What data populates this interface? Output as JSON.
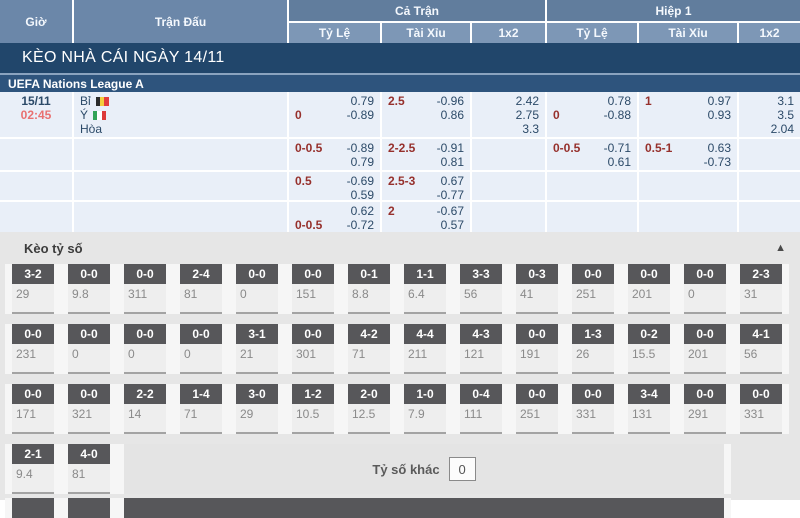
{
  "table_header": {
    "time_col": "Giờ",
    "match_col": "Trận Đấu",
    "full_match": {
      "label": "Cả Trận",
      "subs": [
        "Tỷ Lệ",
        "Tài Xỉu",
        "1x2"
      ]
    },
    "first_half": {
      "label": "Hiệp 1",
      "subs": [
        "Tỷ Lệ",
        "Tài Xỉu",
        "1x2"
      ]
    }
  },
  "banner": {
    "title": "KÈO NHÀ CÁI NGÀY 14/11"
  },
  "league": {
    "name": "UEFA Nations League A"
  },
  "match": {
    "date": "15/11",
    "time": "02:45",
    "teams": [
      {
        "name": "Bỉ",
        "flag": "belgium-flag",
        "flag_colors": [
          "#2b2b2b",
          "#f3ce3c",
          "#e23d3d"
        ]
      },
      {
        "name": "Ý",
        "flag": "italy-flag",
        "flag_colors": [
          "#33a457",
          "#ffffff",
          "#dd3a3a"
        ]
      },
      {
        "name": "Hòa",
        "flag": "",
        "flag_colors": []
      }
    ]
  },
  "odds_rows": [
    {
      "cells": [
        {
          "col": "ft-handicap",
          "lines": [
            [
              "",
              "0.79"
            ],
            [
              "0",
              "-0.89"
            ]
          ]
        },
        {
          "col": "ft-overunder",
          "lines": [
            [
              "2.5",
              "-0.96"
            ],
            [
              "",
              "0.86"
            ]
          ]
        },
        {
          "col": "ft-1x2",
          "lines": [
            [
              "",
              "2.42"
            ],
            [
              "",
              "2.75"
            ],
            [
              "",
              "3.3"
            ]
          ]
        },
        {
          "col": "h1-handicap",
          "lines": [
            [
              "",
              "0.78"
            ],
            [
              "0",
              "-0.88"
            ]
          ]
        },
        {
          "col": "h1-overunder",
          "lines": [
            [
              "1",
              "0.97"
            ],
            [
              "",
              "0.93"
            ]
          ]
        },
        {
          "col": "h1-1x2",
          "lines": [
            [
              "",
              "3.1"
            ],
            [
              "",
              "3.5"
            ],
            [
              "",
              "2.04"
            ]
          ]
        }
      ]
    },
    {
      "cells": [
        {
          "col": "ft-handicap",
          "lines": [
            [
              "0-0.5",
              "-0.89"
            ],
            [
              "",
              "0.79"
            ]
          ]
        },
        {
          "col": "ft-overunder",
          "lines": [
            [
              "2-2.5",
              "-0.91"
            ],
            [
              "",
              "0.81"
            ]
          ]
        },
        {
          "col": "ft-1x2",
          "lines": []
        },
        {
          "col": "h1-handicap",
          "lines": [
            [
              "0-0.5",
              "-0.71"
            ],
            [
              "",
              "0.61"
            ]
          ]
        },
        {
          "col": "h1-overunder",
          "lines": [
            [
              "0.5-1",
              "0.63"
            ],
            [
              "",
              "-0.73"
            ]
          ]
        },
        {
          "col": "h1-1x2",
          "lines": []
        }
      ]
    },
    {
      "cells": [
        {
          "col": "ft-handicap",
          "lines": [
            [
              "0.5",
              "-0.69"
            ],
            [
              "",
              "0.59"
            ]
          ]
        },
        {
          "col": "ft-overunder",
          "lines": [
            [
              "2.5-3",
              "0.67"
            ],
            [
              "",
              "-0.77"
            ]
          ]
        },
        {
          "col": "ft-1x2",
          "lines": []
        },
        {
          "col": "h1-handicap",
          "lines": []
        },
        {
          "col": "h1-overunder",
          "lines": []
        },
        {
          "col": "h1-1x2",
          "lines": []
        }
      ]
    },
    {
      "cells": [
        {
          "col": "ft-handicap",
          "lines": [
            [
              "",
              "0.62"
            ],
            [
              "0-0.5",
              "-0.72"
            ]
          ]
        },
        {
          "col": "ft-overunder",
          "lines": [
            [
              "2",
              "-0.67"
            ],
            [
              "",
              "0.57"
            ]
          ]
        },
        {
          "col": "ft-1x2",
          "lines": []
        },
        {
          "col": "h1-handicap",
          "lines": []
        },
        {
          "col": "h1-overunder",
          "lines": []
        },
        {
          "col": "h1-1x2",
          "lines": []
        }
      ]
    }
  ],
  "score_section": {
    "title": "Kèo tỷ số",
    "collapse_icon": "▲",
    "rows": [
      [
        [
          "3-2",
          "29"
        ],
        [
          "0-0",
          "9.8"
        ],
        [
          "0-0",
          "311"
        ],
        [
          "2-4",
          "81"
        ],
        [
          "0-0",
          "0"
        ],
        [
          "0-0",
          "151"
        ],
        [
          "0-1",
          "8.8"
        ],
        [
          "1-1",
          "6.4"
        ],
        [
          "3-3",
          "56"
        ],
        [
          "0-3",
          "41"
        ],
        [
          "0-0",
          "251"
        ],
        [
          "0-0",
          "201"
        ],
        [
          "0-0",
          "0"
        ],
        [
          "2-3",
          "31"
        ]
      ],
      [
        [
          "0-0",
          "231"
        ],
        [
          "0-0",
          "0"
        ],
        [
          "0-0",
          "0"
        ],
        [
          "0-0",
          "0"
        ],
        [
          "3-1",
          "21"
        ],
        [
          "0-0",
          "301"
        ],
        [
          "4-2",
          "71"
        ],
        [
          "4-4",
          "211"
        ],
        [
          "4-3",
          "121"
        ],
        [
          "0-0",
          "191"
        ],
        [
          "1-3",
          "26"
        ],
        [
          "0-2",
          "15.5"
        ],
        [
          "0-0",
          "201"
        ],
        [
          "4-1",
          "56"
        ]
      ],
      [
        [
          "0-0",
          "171"
        ],
        [
          "0-0",
          "321"
        ],
        [
          "2-2",
          "14"
        ],
        [
          "1-4",
          "71"
        ],
        [
          "3-0",
          "29"
        ],
        [
          "1-2",
          "10.5"
        ],
        [
          "2-0",
          "12.5"
        ],
        [
          "1-0",
          "7.9"
        ],
        [
          "0-4",
          "111"
        ],
        [
          "0-0",
          "251"
        ],
        [
          "0-0",
          "331"
        ],
        [
          "3-4",
          "131"
        ],
        [
          "0-0",
          "291"
        ],
        [
          "0-0",
          "331"
        ]
      ],
      [
        [
          "2-1",
          "9.4"
        ],
        [
          "4-0",
          "81"
        ]
      ]
    ],
    "other_score": {
      "label": "Tỷ số khác",
      "value": "0"
    }
  },
  "colors": {
    "header_blue": "#6b87a9",
    "header_group_blue": "#617d9d",
    "header_sub_blue": "#7d97b6",
    "banner_navy": "#21466b",
    "league_navy": "#2e547d",
    "row_light_blue": "#e9eff8",
    "handicap_red": "#96302c",
    "kickoff_red": "#e97070",
    "odds_navy": "#2c4a68",
    "score_header_gray": "#57575a",
    "section_gray": "#e6e6e6"
  }
}
